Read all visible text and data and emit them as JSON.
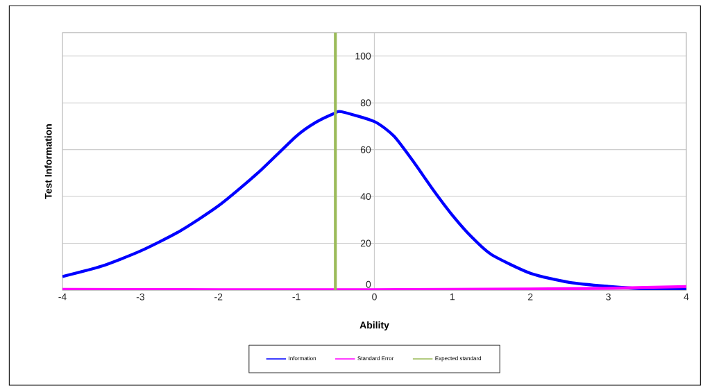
{
  "chart_data": {
    "type": "line",
    "xlabel": "Ability",
    "ylabel": "Test Information",
    "xlim": [
      -4,
      4
    ],
    "ylim": [
      0,
      110
    ],
    "xticks": [
      -4,
      -3,
      -2,
      -1,
      0,
      1,
      2,
      3,
      4
    ],
    "yticks": [
      0,
      20,
      40,
      60,
      80,
      100
    ],
    "grid": "y",
    "legend": "bottom",
    "marker": "none",
    "line_style": "solid",
    "series": [
      {
        "name": "Information",
        "color": "#0000ff",
        "x": [
          -4,
          -3.5,
          -3,
          -2.5,
          -2,
          -1.5,
          -1,
          -0.75,
          -0.5,
          -0.42,
          0,
          0.25,
          0.5,
          0.75,
          1,
          1.25,
          1.5,
          2,
          2.5,
          3,
          3.5,
          4
        ],
        "values": [
          5.8,
          10.2,
          16.7,
          25.1,
          36,
          49.9,
          65.8,
          71.7,
          75.7,
          76.2,
          72,
          65.8,
          54.9,
          43,
          32,
          22.6,
          15.2,
          7.2,
          3.3,
          1.6,
          0.5,
          0.3
        ]
      },
      {
        "name": "Standard Error",
        "color": "#ff00ff",
        "x": [
          -4,
          -2,
          0,
          1,
          2,
          3,
          4
        ],
        "values": [
          0.3,
          0.2,
          0.2,
          0.3,
          0.5,
          0.8,
          1.5
        ]
      },
      {
        "name": "Expected standard",
        "color": "#9bbb59",
        "x": [
          -0.5,
          -0.5
        ],
        "values": [
          0,
          110
        ]
      }
    ]
  }
}
